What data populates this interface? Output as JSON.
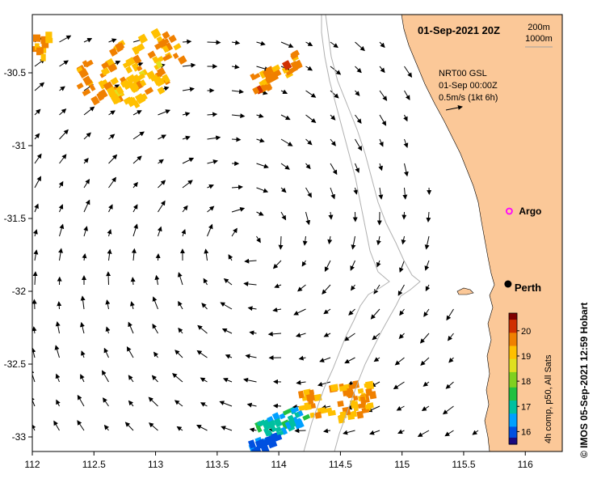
{
  "map": {
    "title": "01-Sep-2021 20Z",
    "depth_legend": [
      "200m",
      "1000m"
    ],
    "product_lines": [
      "NRT00 GSL",
      "01-Sep 00:00Z",
      "0.5m/s (1kt 6h)"
    ],
    "lon_ticks": [
      112,
      112.5,
      113,
      113.5,
      114,
      114.5,
      115,
      115.5,
      116
    ],
    "lat_ticks": [
      -30.5,
      -31,
      -31.5,
      -32,
      -32.5,
      -33
    ],
    "lon_labels": [
      "112",
      "112.5",
      "113",
      "113.5",
      "114",
      "114.5",
      "115",
      "115.5",
      "116"
    ],
    "lat_labels": [
      "-30.5",
      "-31",
      "-31.5",
      "-32",
      "-32.5",
      "-33"
    ],
    "lon_range": [
      112,
      116.3
    ],
    "lat_range": [
      -33.1,
      -30.1
    ],
    "places": [
      {
        "name": "Argo",
        "lon": 115.87,
        "lat": -31.45,
        "marker": "argo"
      },
      {
        "name": "Perth",
        "lon": 115.86,
        "lat": -31.95,
        "marker": "city"
      }
    ],
    "colorbar": {
      "ticks": [
        16,
        17,
        18,
        19,
        20
      ],
      "tick_labels": [
        "16",
        "17",
        "18",
        "19",
        "20"
      ],
      "range": [
        15.5,
        20.7
      ],
      "colors": [
        "#1a0a80",
        "#0050e0",
        "#00a0ff",
        "#00c0a0",
        "#20c040",
        "#80d020",
        "#e0e020",
        "#ffc000",
        "#f08000",
        "#d03000",
        "#800000"
      ],
      "caption": "4h comp, p50, All Sats"
    },
    "credit": "© IMOS 05-Sep-2021 12:59 Hobart",
    "land_color": "#fbc898",
    "sst_patches": [
      {
        "name": "north-patch",
        "lon": 112.75,
        "lat": -30.45,
        "temp": 19.5
      },
      {
        "name": "north-patch-yellow",
        "lon": 112.85,
        "lat": -30.6,
        "temp": 19.2
      },
      {
        "name": "north-west-patch",
        "lon": 112.05,
        "lat": -30.3,
        "temp": 19.6
      },
      {
        "name": "north-east-patch",
        "lon": 113.95,
        "lat": -30.5,
        "temp": 19.6
      },
      {
        "name": "south-patch-warm",
        "lon": 114.45,
        "lat": -32.75,
        "temp": 19.4
      },
      {
        "name": "south-patch-cool",
        "lon": 114.0,
        "lat": -32.9,
        "temp": 17.0
      },
      {
        "name": "south-patch-cold",
        "lon": 113.85,
        "lat": -33.03,
        "temp": 16.2
      }
    ]
  }
}
